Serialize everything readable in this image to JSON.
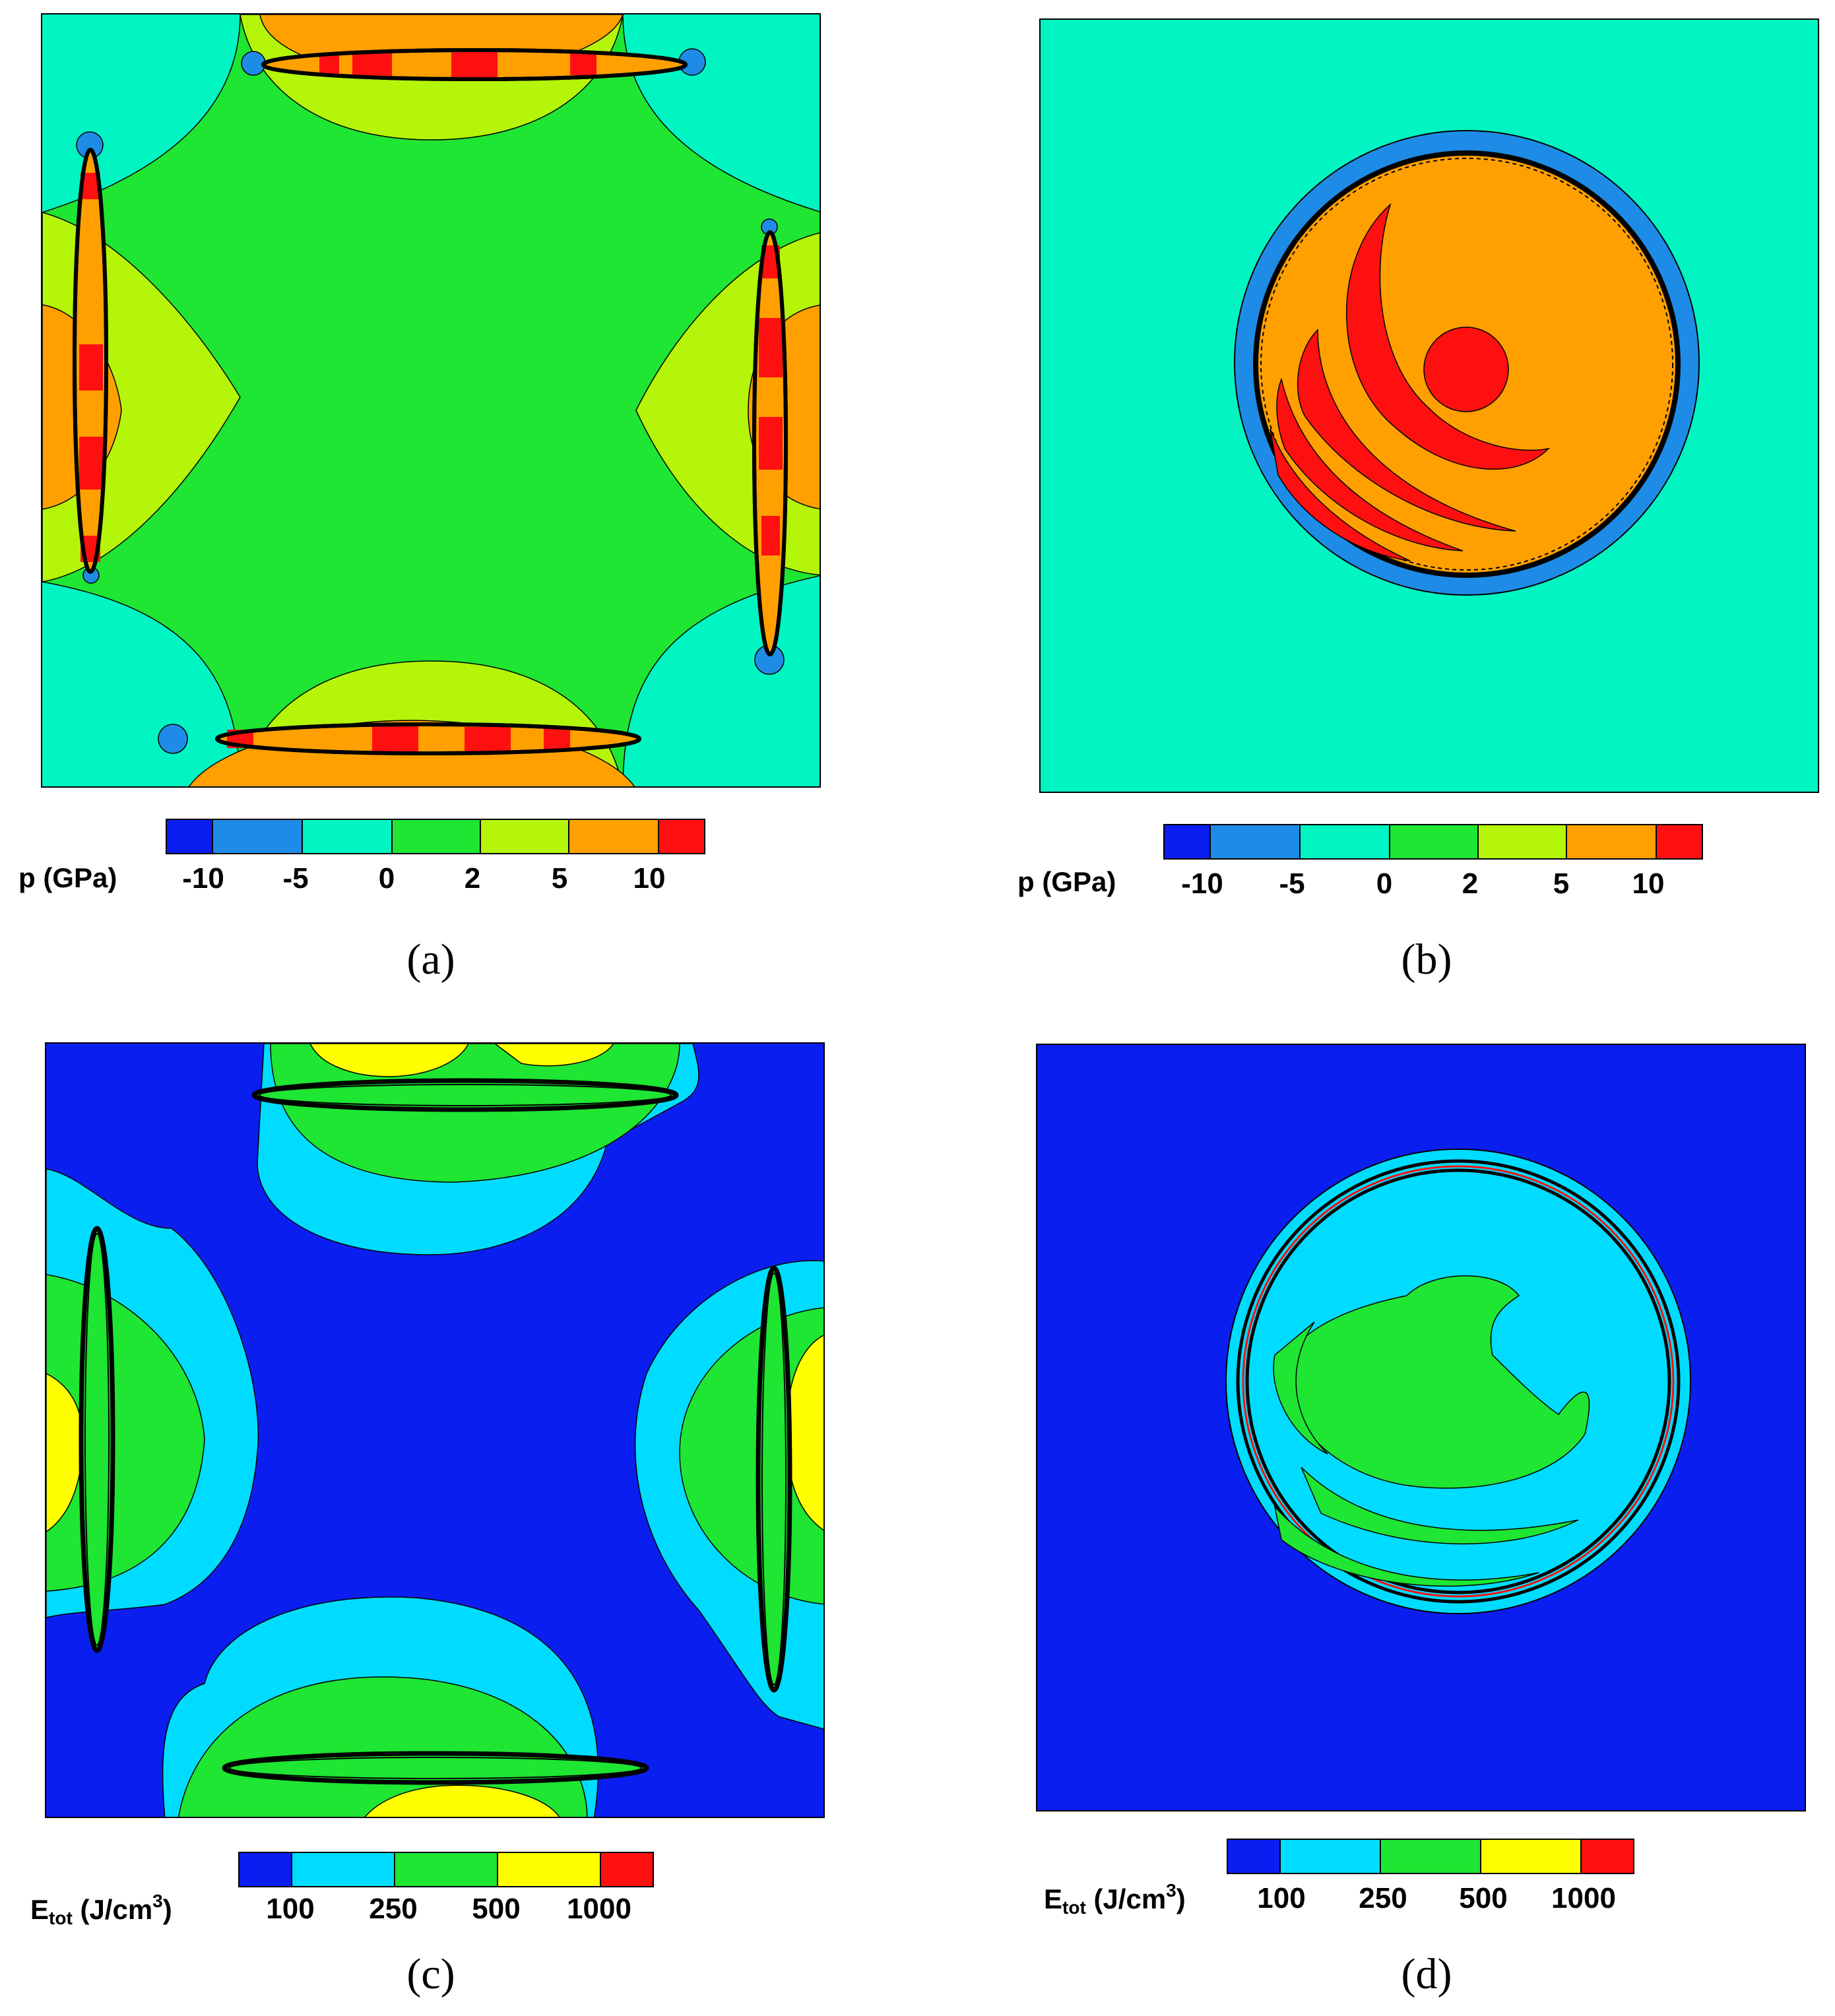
{
  "chart_data": [
    {
      "type": "heatmap",
      "panel": "(a)",
      "colorbar": {
        "label": "p  (GPa)",
        "tick_labels": [
          "-10",
          "-5",
          "0",
          "2",
          "5",
          "10"
        ],
        "levels": [
          -12.5,
          -10,
          -7.5,
          -5,
          0,
          2,
          5,
          10,
          12.5
        ],
        "colors": [
          "#0a1ef0",
          "#1e8ce6",
          "#00f5c3",
          "#1ee632",
          "#b4f50a",
          "#ffa000",
          "#ff1010"
        ]
      },
      "background_color": "#00f5c3"
    },
    {
      "type": "heatmap",
      "panel": "(b)",
      "colorbar": {
        "label": "p  (GPa)",
        "tick_labels": [
          "-10",
          "-5",
          "0",
          "2",
          "5",
          "10"
        ],
        "levels": [
          -12.5,
          -10,
          -7.5,
          -5,
          0,
          2,
          5,
          10,
          12.5
        ],
        "colors": [
          "#0a1ef0",
          "#1e8ce6",
          "#00f5c3",
          "#1ee632",
          "#b4f50a",
          "#ffa000",
          "#ff1010"
        ]
      },
      "background_color": "#00f5c3"
    },
    {
      "type": "heatmap",
      "panel": "(c)",
      "colorbar": {
        "label_main": "E",
        "label_sub": "tot",
        "label_unit": "(J/cm",
        "label_sup": "3",
        "label_close": ")",
        "tick_labels": [
          "100",
          "250",
          "500",
          "1000"
        ],
        "colors": [
          "#0a1ef0",
          "#00dcff",
          "#1ee632",
          "#ffff00",
          "#ff1010"
        ]
      },
      "background_color": "#0a1ef0"
    },
    {
      "type": "heatmap",
      "panel": "(d)",
      "colorbar": {
        "label_main": "E",
        "label_sub": "tot",
        "label_unit": "(J/cm",
        "label_sup": "3",
        "label_close": ")",
        "tick_labels": [
          "100",
          "250",
          "500",
          "1000"
        ],
        "colors": [
          "#0a1ef0",
          "#00dcff",
          "#1ee632",
          "#ffff00",
          "#ff1010"
        ]
      },
      "background_color": "#0a1ef0"
    }
  ],
  "captions": [
    "(a)",
    "(b)",
    "(c)",
    "(d)"
  ]
}
